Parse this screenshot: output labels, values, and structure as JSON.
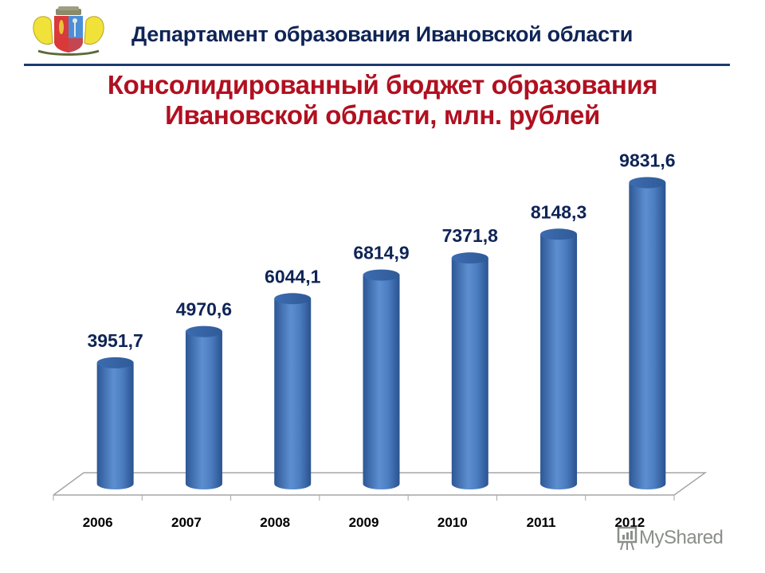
{
  "header": {
    "title": "Департамент образования Ивановской области",
    "logo_icon": "coat-of-arms-icon"
  },
  "chart_title": {
    "line1": "Консолидированный бюджет образования",
    "line2": "Ивановской области, млн. рублей"
  },
  "watermark": {
    "label": "MyShared",
    "icon": "presentation-board-icon"
  },
  "colors": {
    "bar": "#4a7cc0",
    "bar_dark": "#2f5a98",
    "bar_light": "#6d9ad6",
    "value_label": "#0f2456",
    "title": "#b01020",
    "header": "#0f2456",
    "floor": "#a6a6a6"
  },
  "chart_data": {
    "type": "bar",
    "style": "3d-cylinder",
    "title": "Консолидированный бюджет образования Ивановской области, млн. рублей",
    "xlabel": "",
    "ylabel": "млн. рублей",
    "categories": [
      "2006",
      "2007",
      "2008",
      "2009",
      "2010",
      "2011",
      "2012"
    ],
    "values": [
      3951.7,
      4970.6,
      6044.1,
      6814.9,
      7371.8,
      8148.3,
      9831.6
    ],
    "value_labels": [
      "3951,7",
      "4970,6",
      "6044,1",
      "6814,9",
      "7371,8",
      "8148,3",
      "9831,6"
    ],
    "grid": false,
    "legend": "none",
    "y_axis_visible": false
  }
}
